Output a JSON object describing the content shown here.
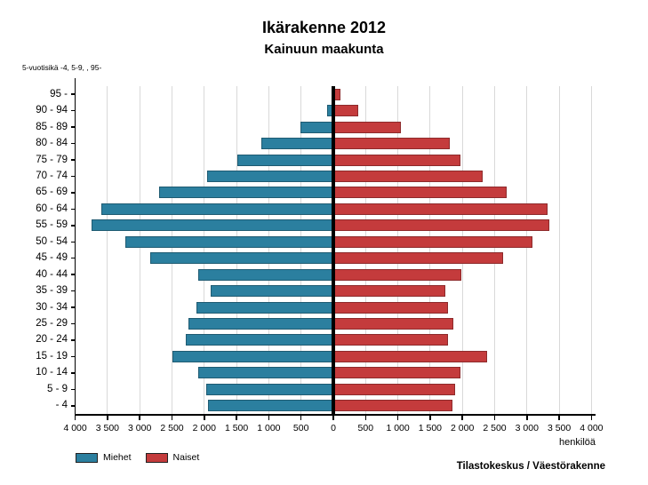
{
  "colors": {
    "background": "#FFFFFF",
    "grid": "#D9D9D9",
    "axis": "#000000",
    "bar_border": "rgba(0,0,0,0.28)"
  },
  "chart_data": {
    "type": "bar",
    "variant": "population-pyramid",
    "title": "Ikärakenne 2012",
    "subtitle": "Kainuun maakunta",
    "axis_note": "5-vuotisikä -4, 5-9, , 95-",
    "x_unit_label": "henkilöä",
    "source": "Tilastokeskus / Väestörakenne",
    "grid": true,
    "legend_position": "bottom-left",
    "categories_top_to_bottom": [
      "95 -",
      "90 - 94",
      "85 - 89",
      "80 - 84",
      "75 - 79",
      "70 - 74",
      "65 - 69",
      "60 - 64",
      "55 - 59",
      "50 - 54",
      "45 - 49",
      "40 - 44",
      "35 - 39",
      "30 - 34",
      "25 - 29",
      "20 - 24",
      "15 - 19",
      "10 - 14",
      "5 - 9",
      "- 4"
    ],
    "series": [
      {
        "name": "Miehet",
        "side": "left",
        "color": "#2B7F9F",
        "values_top_to_bottom": [
          30,
          90,
          510,
          1120,
          1490,
          1960,
          2700,
          3590,
          3740,
          3220,
          2840,
          2100,
          1900,
          2120,
          2250,
          2290,
          2490,
          2090,
          1970,
          1940
        ]
      },
      {
        "name": "Naiset",
        "side": "right",
        "color": "#C43B3C",
        "values_top_to_bottom": [
          110,
          380,
          1050,
          1800,
          1970,
          2320,
          2680,
          3320,
          3350,
          3080,
          2630,
          1980,
          1740,
          1780,
          1860,
          1780,
          2380,
          1970,
          1890,
          1850
        ]
      }
    ],
    "x_axis": {
      "max_each_side": 4000,
      "tick_step": 500,
      "tick_labels_left_to_right": [
        "4 000",
        "3 500",
        "3 000",
        "2 500",
        "2 000",
        "1 500",
        "1 000",
        "500",
        "0",
        "500",
        "1 000",
        "1 500",
        "2 000",
        "2 500",
        "3 000",
        "3 500",
        "4 000"
      ]
    }
  }
}
